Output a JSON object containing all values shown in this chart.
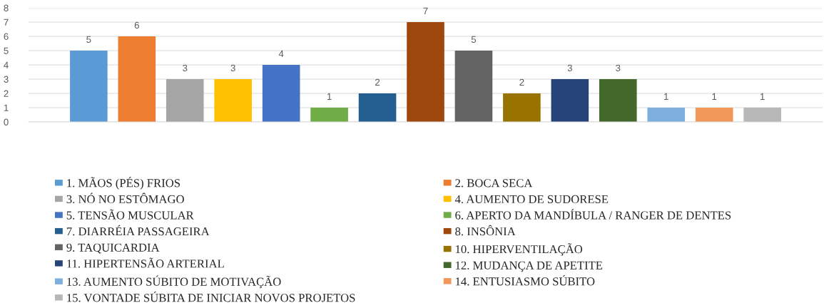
{
  "chart_data": {
    "type": "bar",
    "categories": [
      null
    ],
    "series": [
      {
        "name": "1. MÃOS (PÉS) FRIOS",
        "color": "#5b9bd5",
        "values": [
          5
        ]
      },
      {
        "name": "2. BOCA SECA",
        "color": "#ed7d31",
        "values": [
          6
        ]
      },
      {
        "name": "3. NÓ NO ESTÔMAGO",
        "color": "#a5a5a5",
        "values": [
          3
        ]
      },
      {
        "name": "4. AUMENTO DE SUDORESE",
        "color": "#ffc000",
        "values": [
          3
        ]
      },
      {
        "name": "5. TENSÃO MUSCULAR",
        "color": "#4472c4",
        "values": [
          4
        ]
      },
      {
        "name": "6. APERTO DA MANDÍBULA / RANGER DE DENTES",
        "color": "#70ad47",
        "values": [
          1
        ]
      },
      {
        "name": "7. DIARRÉIA PASSAGEIRA",
        "color": "#255e91",
        "values": [
          2
        ]
      },
      {
        "name": "8. INSÔNIA",
        "color": "#9e480e",
        "values": [
          7
        ]
      },
      {
        "name": "9. TAQUICARDIA",
        "color": "#636363",
        "values": [
          5
        ]
      },
      {
        "name": "10. HIPERVENTILAÇÃO",
        "color": "#997300",
        "values": [
          2
        ]
      },
      {
        "name": "11. HIPERTENSÃO ARTERIAL",
        "color": "#264478",
        "values": [
          3
        ]
      },
      {
        "name": "12. MUDANÇA DE APETITE",
        "color": "#43682b",
        "values": [
          3
        ]
      },
      {
        "name": "13. AUMENTO SÚBITO DE MOTIVAÇÃO",
        "color": "#7cafdd",
        "values": [
          1
        ]
      },
      {
        "name": "14. ENTUSIASMO SÚBITO",
        "color": "#f1975a",
        "values": [
          1
        ]
      },
      {
        "name": "15. VONTADE SÚBITA DE INICIAR NOVOS PROJETOS",
        "color": "#b7b7b7",
        "values": [
          1
        ]
      }
    ],
    "ylim": [
      0,
      8
    ],
    "yticks": [
      0,
      1,
      2,
      3,
      4,
      5,
      6,
      7,
      8
    ],
    "grid": "y",
    "legend": "bottom",
    "data_labels": true,
    "tick_labels": "y"
  }
}
